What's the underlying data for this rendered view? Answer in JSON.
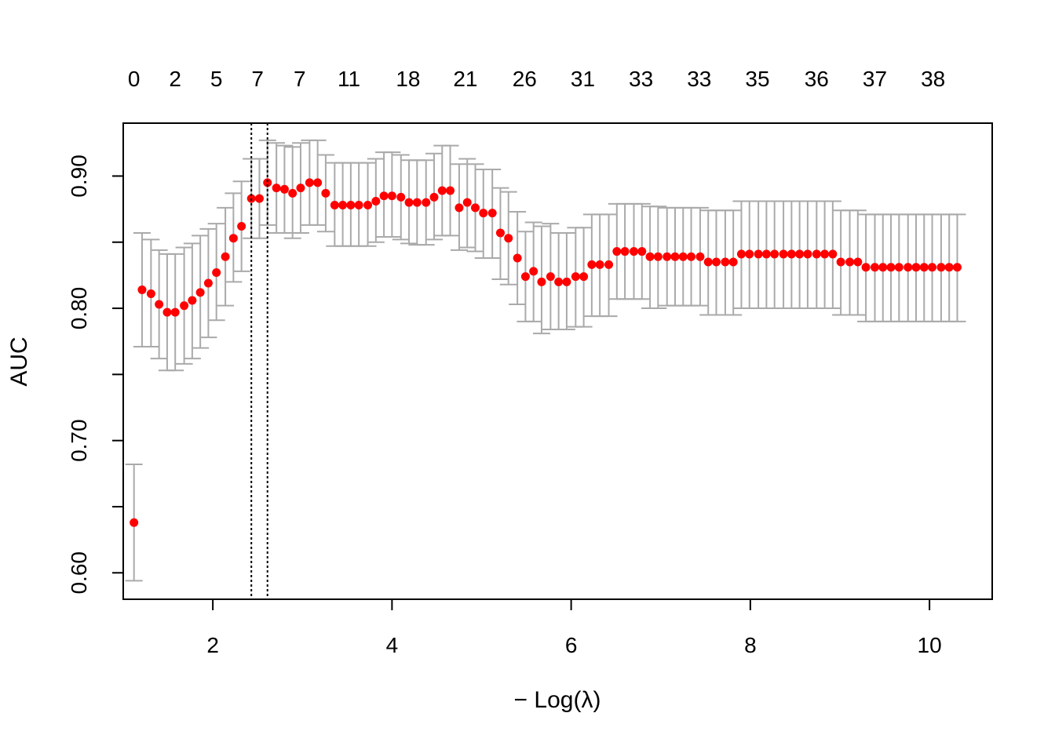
{
  "chart_data": {
    "type": "scatter",
    "title": "",
    "xlabel": "− Log(λ)",
    "ylabel": "AUC",
    "xlim": [
      1.0,
      10.7
    ],
    "ylim": [
      0.58,
      0.94
    ],
    "x_ticks": [
      2,
      4,
      6,
      8,
      10
    ],
    "x_tick_labels": [
      "2",
      "4",
      "6",
      "8",
      "10"
    ],
    "y_ticks": [
      0.6,
      0.65,
      0.7,
      0.75,
      0.8,
      0.85,
      0.9
    ],
    "y_tick_labels": [
      "0.60",
      "",
      "0.70",
      "",
      "0.80",
      "",
      "0.90"
    ],
    "top_axis_positions": [
      1.12,
      1.58,
      2.04,
      2.5,
      2.97,
      3.52,
      4.18,
      4.82,
      5.48,
      6.13,
      6.78,
      7.43,
      8.08,
      8.74,
      9.39,
      10.04
    ],
    "top_axis_labels": [
      "0",
      "2",
      "5",
      "7",
      "7",
      "11",
      "18",
      "21",
      "26",
      "31",
      "33",
      "33",
      "35",
      "36",
      "37",
      "38"
    ],
    "reference_lines": [
      2.43,
      2.61
    ],
    "grid": false,
    "legend": "none",
    "colors": {
      "point": "#ff0000",
      "error_bar": "#aaaaaa",
      "reference_line": "#000000",
      "axis": "#000000"
    },
    "series": [
      {
        "x": [
          1.12,
          1.21,
          1.31,
          1.4,
          1.49,
          1.58,
          1.68,
          1.77,
          1.86,
          1.95,
          2.04,
          2.14,
          2.23,
          2.32,
          2.43,
          2.52,
          2.61,
          2.71,
          2.8,
          2.89,
          2.98,
          3.08,
          3.17,
          3.26,
          3.36,
          3.45,
          3.54,
          3.63,
          3.73,
          3.82,
          3.91,
          4.0,
          4.1,
          4.19,
          4.28,
          4.38,
          4.47,
          4.56,
          4.65,
          4.75,
          4.84,
          4.93,
          5.02,
          5.12,
          5.21,
          5.3,
          5.4,
          5.49,
          5.58,
          5.67,
          5.77,
          5.86,
          5.95,
          6.05,
          6.14,
          6.23,
          6.32,
          6.42,
          6.51,
          6.6,
          6.7,
          6.79,
          6.88,
          6.97,
          7.07,
          7.16,
          7.25,
          7.34,
          7.44,
          7.53,
          7.62,
          7.72,
          7.81,
          7.9,
          7.99,
          8.09,
          8.18,
          8.27,
          8.37,
          8.46,
          8.55,
          8.64,
          8.74,
          8.83,
          8.92,
          9.01,
          9.11,
          9.2,
          9.29,
          9.39,
          9.48,
          9.57,
          9.66,
          9.76,
          9.85,
          9.94,
          10.03,
          10.13,
          10.22,
          10.31
        ],
        "y": [
          0.638,
          0.814,
          0.811,
          0.803,
          0.797,
          0.797,
          0.802,
          0.806,
          0.812,
          0.819,
          0.827,
          0.839,
          0.853,
          0.862,
          0.883,
          0.883,
          0.895,
          0.891,
          0.89,
          0.887,
          0.891,
          0.895,
          0.895,
          0.887,
          0.878,
          0.878,
          0.878,
          0.878,
          0.878,
          0.881,
          0.885,
          0.885,
          0.884,
          0.88,
          0.88,
          0.88,
          0.884,
          0.889,
          0.889,
          0.876,
          0.88,
          0.876,
          0.872,
          0.872,
          0.857,
          0.853,
          0.838,
          0.824,
          0.828,
          0.82,
          0.824,
          0.82,
          0.82,
          0.824,
          0.824,
          0.833,
          0.833,
          0.833,
          0.843,
          0.843,
          0.843,
          0.843,
          0.839,
          0.839,
          0.839,
          0.839,
          0.839,
          0.839,
          0.839,
          0.835,
          0.835,
          0.835,
          0.835,
          0.841,
          0.841,
          0.841,
          0.841,
          0.841,
          0.841,
          0.841,
          0.841,
          0.841,
          0.841,
          0.841,
          0.841,
          0.835,
          0.835,
          0.835,
          0.831,
          0.831,
          0.831,
          0.831,
          0.831,
          0.831,
          0.831,
          0.831,
          0.831,
          0.831,
          0.831,
          0.831
        ],
        "err_lower": [
          0.594,
          0.771,
          0.771,
          0.762,
          0.753,
          0.753,
          0.758,
          0.762,
          0.77,
          0.778,
          0.791,
          0.802,
          0.82,
          0.828,
          0.853,
          0.853,
          0.863,
          0.857,
          0.857,
          0.853,
          0.857,
          0.863,
          0.863,
          0.858,
          0.847,
          0.847,
          0.847,
          0.847,
          0.847,
          0.85,
          0.854,
          0.854,
          0.852,
          0.849,
          0.848,
          0.848,
          0.852,
          0.855,
          0.855,
          0.844,
          0.846,
          0.843,
          0.838,
          0.838,
          0.822,
          0.818,
          0.803,
          0.79,
          0.79,
          0.781,
          0.784,
          0.784,
          0.784,
          0.786,
          0.786,
          0.794,
          0.794,
          0.794,
          0.807,
          0.807,
          0.807,
          0.807,
          0.8,
          0.8,
          0.802,
          0.802,
          0.802,
          0.802,
          0.802,
          0.795,
          0.795,
          0.795,
          0.795,
          0.8,
          0.8,
          0.8,
          0.8,
          0.8,
          0.8,
          0.8,
          0.8,
          0.8,
          0.8,
          0.8,
          0.8,
          0.795,
          0.795,
          0.795,
          0.79,
          0.79,
          0.79,
          0.79,
          0.79,
          0.79,
          0.79,
          0.79,
          0.79,
          0.79,
          0.79,
          0.79
        ],
        "err_upper": [
          0.682,
          0.857,
          0.852,
          0.844,
          0.841,
          0.841,
          0.846,
          0.849,
          0.855,
          0.86,
          0.864,
          0.876,
          0.887,
          0.896,
          0.913,
          0.913,
          0.927,
          0.925,
          0.923,
          0.922,
          0.925,
          0.927,
          0.927,
          0.916,
          0.91,
          0.91,
          0.91,
          0.91,
          0.91,
          0.913,
          0.918,
          0.918,
          0.916,
          0.912,
          0.912,
          0.912,
          0.917,
          0.923,
          0.923,
          0.909,
          0.913,
          0.909,
          0.905,
          0.905,
          0.891,
          0.888,
          0.873,
          0.858,
          0.865,
          0.862,
          0.864,
          0.857,
          0.857,
          0.861,
          0.861,
          0.871,
          0.871,
          0.871,
          0.879,
          0.879,
          0.879,
          0.879,
          0.877,
          0.877,
          0.876,
          0.876,
          0.876,
          0.876,
          0.876,
          0.874,
          0.874,
          0.874,
          0.874,
          0.881,
          0.881,
          0.881,
          0.881,
          0.881,
          0.881,
          0.881,
          0.881,
          0.881,
          0.881,
          0.881,
          0.881,
          0.874,
          0.874,
          0.874,
          0.871,
          0.871,
          0.871,
          0.871,
          0.871,
          0.871,
          0.871,
          0.871,
          0.871,
          0.871,
          0.871,
          0.871
        ]
      }
    ]
  }
}
